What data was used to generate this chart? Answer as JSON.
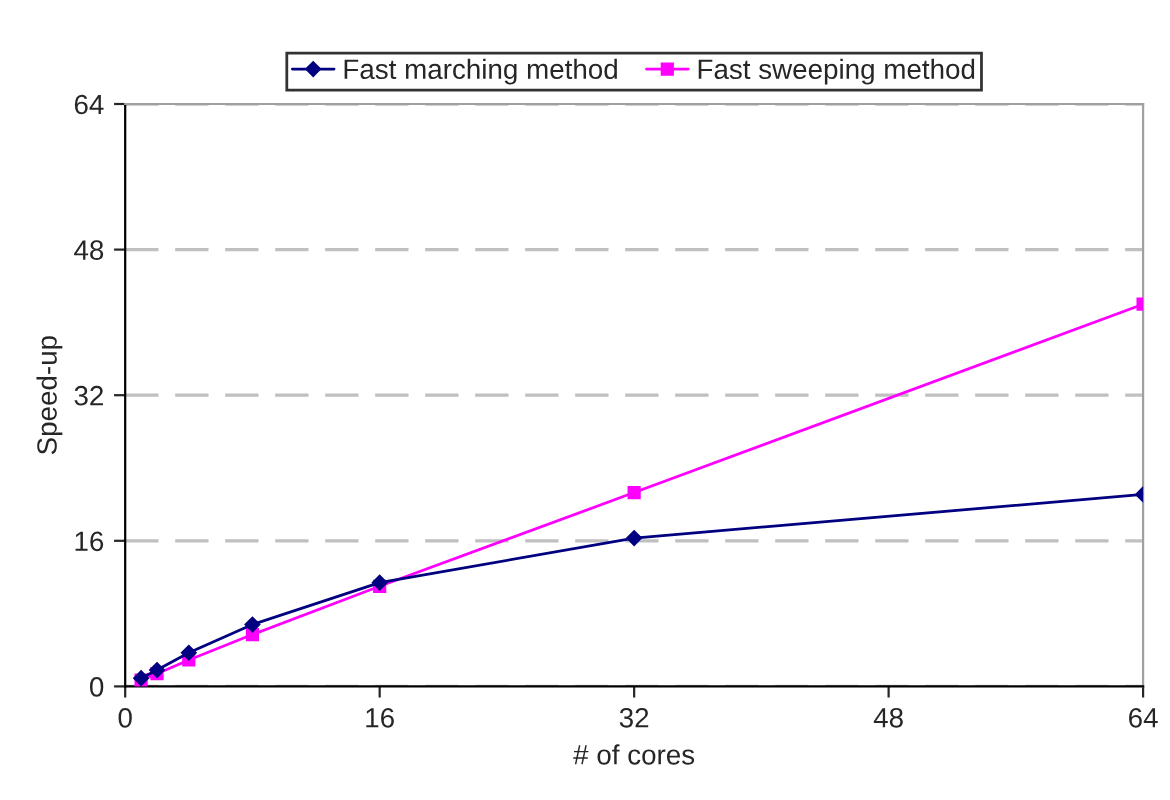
{
  "chart_data": {
    "type": "line",
    "xlabel": "# of cores",
    "ylabel": "Speed-up",
    "x": [
      1,
      2,
      4,
      8,
      16,
      32,
      64
    ],
    "series": [
      {
        "name": "Fast marching method",
        "color": "#000080",
        "marker": "diamond",
        "values": [
          0.9,
          1.8,
          3.7,
          6.8,
          11.4,
          16.3,
          21.1
        ]
      },
      {
        "name": "Fast sweeping method",
        "color": "#ff00ff",
        "marker": "square",
        "values": [
          0.7,
          1.4,
          2.9,
          5.7,
          11.0,
          21.3,
          42.0
        ]
      }
    ],
    "xlim": [
      0,
      64
    ],
    "xticks": [
      0,
      16,
      32,
      48,
      64
    ],
    "ylim": [
      0,
      64
    ],
    "yticks": [
      0,
      16,
      32,
      48,
      64
    ],
    "grid": "y",
    "legend": "top",
    "line_style": "solid"
  }
}
